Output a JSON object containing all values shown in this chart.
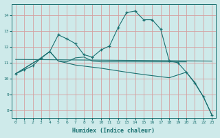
{
  "bg_color": "#ceeaea",
  "grid_color": "#d4a0a0",
  "line_color": "#1a7070",
  "x_label": "Humidex (Indice chaleur)",
  "xlim": [
    -0.5,
    23.5
  ],
  "ylim": [
    7.5,
    14.7
  ],
  "yticks": [
    8,
    9,
    10,
    11,
    12,
    13,
    14
  ],
  "xticks": [
    0,
    1,
    2,
    3,
    4,
    5,
    6,
    7,
    8,
    9,
    10,
    11,
    12,
    13,
    14,
    15,
    16,
    17,
    18,
    19,
    20,
    21,
    22,
    23
  ],
  "line1_x": [
    0,
    1,
    2,
    3,
    4,
    5,
    6,
    7,
    8,
    9,
    10,
    11,
    12,
    13,
    14,
    15,
    16,
    17,
    18,
    19,
    20,
    21,
    22,
    23
  ],
  "line1_y": [
    10.3,
    10.55,
    10.8,
    11.3,
    11.7,
    12.75,
    12.5,
    12.2,
    11.5,
    11.35,
    11.8,
    12.05,
    13.2,
    14.15,
    14.25,
    13.7,
    13.7,
    13.1,
    11.1,
    11.0,
    10.4,
    9.75,
    8.85,
    7.7
  ],
  "line2_x": [
    0,
    3,
    4,
    5,
    6,
    7,
    8,
    9,
    10,
    11,
    12,
    13,
    14,
    15,
    16,
    17,
    18,
    19,
    20
  ],
  "line2_y": [
    10.3,
    11.3,
    11.7,
    11.1,
    11.05,
    11.3,
    11.35,
    11.1,
    11.05,
    11.05,
    11.05,
    11.05,
    11.05,
    11.05,
    11.05,
    11.05,
    11.05,
    11.05,
    11.05
  ],
  "line3_x": [
    0,
    23
  ],
  "line3_y": [
    11.2,
    11.1
  ],
  "line4_x": [
    0,
    3,
    4,
    5,
    7,
    10,
    13,
    15,
    18,
    20,
    21,
    22,
    23
  ],
  "line4_y": [
    10.3,
    11.3,
    11.7,
    11.1,
    10.85,
    10.65,
    10.4,
    10.25,
    10.05,
    10.4,
    9.7,
    8.85,
    7.7
  ]
}
